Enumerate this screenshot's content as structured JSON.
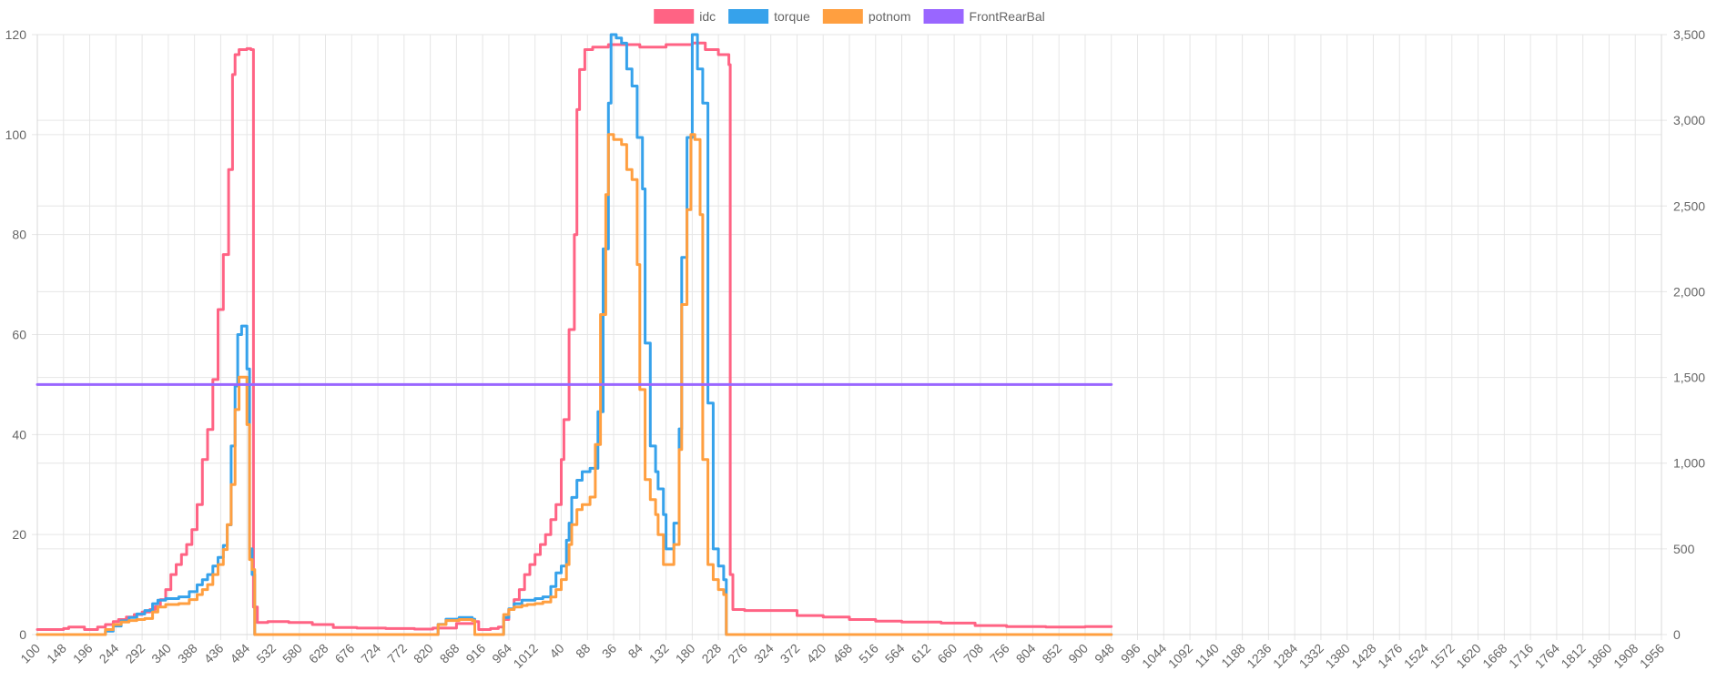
{
  "chart_data": {
    "type": "line",
    "title": "",
    "xlabel": "",
    "ylabel": "",
    "legend_position": "top",
    "grid": true,
    "x_tick_labels": [
      "100",
      "148",
      "196",
      "244",
      "292",
      "340",
      "388",
      "436",
      "484",
      "532",
      "580",
      "628",
      "676",
      "724",
      "772",
      "820",
      "868",
      "916",
      "964",
      "1012",
      "40",
      "88",
      "36",
      "84",
      "132",
      "180",
      "228",
      "276",
      "324",
      "372",
      "420",
      "468",
      "516",
      "564",
      "612",
      "660",
      "708",
      "756",
      "804",
      "852",
      "900",
      "948",
      "996",
      "1044",
      "1092",
      "1140",
      "1188",
      "1236",
      "1284",
      "1332",
      "1380",
      "1428",
      "1476",
      "1524",
      "1572",
      "1620",
      "1668",
      "1716",
      "1764",
      "1812",
      "1860",
      "1908",
      "1956"
    ],
    "y_left": {
      "min": 0,
      "max": 120,
      "ticks": [
        "0",
        "20",
        "40",
        "60",
        "80",
        "100",
        "120"
      ]
    },
    "y_right": {
      "min": 0,
      "max": 3500,
      "ticks": [
        "0",
        "500",
        "1,000",
        "1,500",
        "2,000",
        "2,500",
        "3,000",
        "3,500"
      ]
    },
    "series": [
      {
        "name": "idc",
        "axis": "left",
        "color": "#ff6384",
        "points": [
          [
            0,
            1
          ],
          [
            1,
            1.2
          ],
          [
            1.2,
            1.5
          ],
          [
            1.8,
            1
          ],
          [
            2.3,
            1.5
          ],
          [
            2.6,
            2
          ],
          [
            2.9,
            2.6
          ],
          [
            3.1,
            3
          ],
          [
            3.4,
            3.5
          ],
          [
            3.7,
            4
          ],
          [
            4,
            4.5
          ],
          [
            4.3,
            5
          ],
          [
            4.5,
            5.6
          ],
          [
            4.7,
            7
          ],
          [
            4.9,
            9
          ],
          [
            5.1,
            12
          ],
          [
            5.3,
            14
          ],
          [
            5.5,
            16
          ],
          [
            5.7,
            18
          ],
          [
            5.9,
            21
          ],
          [
            6.1,
            26
          ],
          [
            6.3,
            35
          ],
          [
            6.5,
            41
          ],
          [
            6.7,
            51
          ],
          [
            6.9,
            65
          ],
          [
            7.1,
            76
          ],
          [
            7.3,
            93
          ],
          [
            7.45,
            112
          ],
          [
            7.55,
            116
          ],
          [
            7.7,
            117
          ],
          [
            8,
            117.2
          ],
          [
            8.15,
            117
          ],
          [
            8.25,
            5.5
          ],
          [
            8.4,
            2.4
          ],
          [
            8.8,
            2.6
          ],
          [
            9.6,
            2.4
          ],
          [
            10.5,
            2
          ],
          [
            11.3,
            1.4
          ],
          [
            12.2,
            1.3
          ],
          [
            13.3,
            1.2
          ],
          [
            14.4,
            1.1
          ],
          [
            15.1,
            1.3
          ],
          [
            16,
            2.2
          ],
          [
            16.7,
            2.6
          ],
          [
            16.85,
            1
          ],
          [
            17.3,
            1.2
          ],
          [
            17.6,
            1.5
          ],
          [
            17.8,
            3
          ],
          [
            18,
            5
          ],
          [
            18.2,
            7
          ],
          [
            18.4,
            9
          ],
          [
            18.6,
            12
          ],
          [
            18.8,
            14
          ],
          [
            19,
            16
          ],
          [
            19.2,
            18
          ],
          [
            19.4,
            20
          ],
          [
            19.6,
            23
          ],
          [
            19.8,
            26
          ],
          [
            20,
            35
          ],
          [
            20.1,
            43
          ],
          [
            20.3,
            61
          ],
          [
            20.5,
            80
          ],
          [
            20.6,
            105
          ],
          [
            20.7,
            113
          ],
          [
            20.9,
            117
          ],
          [
            21.2,
            117.5
          ],
          [
            21.8,
            118
          ],
          [
            22.3,
            118
          ],
          [
            23,
            117.5
          ],
          [
            24,
            118
          ],
          [
            25,
            118.3
          ],
          [
            25.5,
            117
          ],
          [
            26,
            116
          ],
          [
            26.4,
            114
          ],
          [
            26.45,
            12
          ],
          [
            26.55,
            5
          ],
          [
            27,
            4.8
          ],
          [
            28.2,
            4.8
          ],
          [
            29,
            3.8
          ],
          [
            30,
            3.5
          ],
          [
            31,
            3
          ],
          [
            32,
            2.7
          ],
          [
            33,
            2.5
          ],
          [
            34.5,
            2.3
          ],
          [
            35.8,
            1.8
          ],
          [
            37,
            1.6
          ],
          [
            38.5,
            1.5
          ],
          [
            40,
            1.6
          ],
          [
            41,
            1.6
          ]
        ]
      },
      {
        "name": "torque",
        "axis": "right",
        "color": "#36a2eb",
        "points": [
          [
            0,
            0
          ],
          [
            2.4,
            0
          ],
          [
            2.6,
            20
          ],
          [
            2.9,
            50
          ],
          [
            3.2,
            80
          ],
          [
            3.5,
            100
          ],
          [
            3.8,
            120
          ],
          [
            4.1,
            140
          ],
          [
            4.4,
            180
          ],
          [
            4.6,
            200
          ],
          [
            4.9,
            210
          ],
          [
            5.4,
            220
          ],
          [
            5.8,
            250
          ],
          [
            6.1,
            290
          ],
          [
            6.3,
            320
          ],
          [
            6.5,
            350
          ],
          [
            6.7,
            400
          ],
          [
            6.9,
            450
          ],
          [
            7.1,
            520
          ],
          [
            7.25,
            640
          ],
          [
            7.4,
            1100
          ],
          [
            7.55,
            1450
          ],
          [
            7.65,
            1750
          ],
          [
            7.8,
            1800
          ],
          [
            8,
            1550
          ],
          [
            8.1,
            500
          ],
          [
            8.2,
            350
          ],
          [
            8.3,
            0
          ],
          [
            15.1,
            0
          ],
          [
            15.3,
            60
          ],
          [
            15.6,
            90
          ],
          [
            16.1,
            100
          ],
          [
            16.6,
            90
          ],
          [
            16.7,
            0
          ],
          [
            17.6,
            0
          ],
          [
            17.8,
            100
          ],
          [
            18,
            150
          ],
          [
            18.2,
            180
          ],
          [
            18.5,
            200
          ],
          [
            18.7,
            200
          ],
          [
            19,
            210
          ],
          [
            19.3,
            220
          ],
          [
            19.6,
            280
          ],
          [
            19.8,
            360
          ],
          [
            20,
            400
          ],
          [
            20.2,
            550
          ],
          [
            20.3,
            650
          ],
          [
            20.4,
            800
          ],
          [
            20.6,
            900
          ],
          [
            20.8,
            950
          ],
          [
            21.1,
            970
          ],
          [
            21.4,
            1300
          ],
          [
            21.6,
            2250
          ],
          [
            21.8,
            3100
          ],
          [
            21.9,
            3500
          ],
          [
            22.1,
            3480
          ],
          [
            22.3,
            3450
          ],
          [
            22.5,
            3300
          ],
          [
            22.7,
            3200
          ],
          [
            22.9,
            2900
          ],
          [
            23.1,
            2600
          ],
          [
            23.2,
            1700
          ],
          [
            23.4,
            1100
          ],
          [
            23.6,
            950
          ],
          [
            23.7,
            850
          ],
          [
            23.9,
            700
          ],
          [
            24,
            500
          ],
          [
            24.3,
            650
          ],
          [
            24.5,
            1200
          ],
          [
            24.6,
            2200
          ],
          [
            24.8,
            2900
          ],
          [
            25,
            3500
          ],
          [
            25.2,
            3300
          ],
          [
            25.4,
            3100
          ],
          [
            25.6,
            1350
          ],
          [
            25.8,
            500
          ],
          [
            26,
            400
          ],
          [
            26.2,
            320
          ],
          [
            26.3,
            0
          ],
          [
            41,
            0
          ]
        ]
      },
      {
        "name": "potnom",
        "axis": "left",
        "color": "#ff9f40",
        "points": [
          [
            0,
            0
          ],
          [
            2.4,
            0
          ],
          [
            2.6,
            1
          ],
          [
            2.9,
            2
          ],
          [
            3.2,
            2.5
          ],
          [
            3.5,
            2.8
          ],
          [
            3.8,
            3
          ],
          [
            4.1,
            3.2
          ],
          [
            4.4,
            4.5
          ],
          [
            4.6,
            5.5
          ],
          [
            4.9,
            6
          ],
          [
            5.4,
            6.2
          ],
          [
            5.8,
            7
          ],
          [
            6.1,
            8
          ],
          [
            6.3,
            9
          ],
          [
            6.5,
            10
          ],
          [
            6.7,
            12
          ],
          [
            6.9,
            14
          ],
          [
            7.1,
            17
          ],
          [
            7.25,
            22
          ],
          [
            7.4,
            30
          ],
          [
            7.55,
            45
          ],
          [
            7.7,
            51.5
          ],
          [
            7.9,
            51.5
          ],
          [
            8,
            42
          ],
          [
            8.1,
            15
          ],
          [
            8.2,
            13
          ],
          [
            8.3,
            0
          ],
          [
            15.1,
            0
          ],
          [
            15.3,
            2
          ],
          [
            15.6,
            2.8
          ],
          [
            16.1,
            3
          ],
          [
            16.6,
            2.8
          ],
          [
            16.7,
            0
          ],
          [
            17.6,
            0
          ],
          [
            17.8,
            4
          ],
          [
            18,
            5
          ],
          [
            18.2,
            5.5
          ],
          [
            18.5,
            5.8
          ],
          [
            18.7,
            6
          ],
          [
            19,
            6.2
          ],
          [
            19.3,
            6.5
          ],
          [
            19.6,
            7.5
          ],
          [
            19.8,
            9
          ],
          [
            20,
            11
          ],
          [
            20.2,
            14
          ],
          [
            20.3,
            18
          ],
          [
            20.4,
            22
          ],
          [
            20.6,
            25
          ],
          [
            20.8,
            26
          ],
          [
            21.1,
            27.5
          ],
          [
            21.3,
            38
          ],
          [
            21.5,
            64
          ],
          [
            21.7,
            88
          ],
          [
            21.8,
            100
          ],
          [
            22,
            99
          ],
          [
            22.3,
            98
          ],
          [
            22.5,
            93
          ],
          [
            22.7,
            91
          ],
          [
            22.9,
            74
          ],
          [
            23,
            49
          ],
          [
            23.2,
            31
          ],
          [
            23.4,
            27
          ],
          [
            23.6,
            24
          ],
          [
            23.7,
            20
          ],
          [
            23.9,
            14
          ],
          [
            24.1,
            14
          ],
          [
            24.3,
            18
          ],
          [
            24.5,
            37
          ],
          [
            24.6,
            66
          ],
          [
            24.8,
            85
          ],
          [
            24.95,
            100
          ],
          [
            25.1,
            99
          ],
          [
            25.3,
            84
          ],
          [
            25.4,
            35
          ],
          [
            25.6,
            14
          ],
          [
            25.8,
            11
          ],
          [
            26,
            9
          ],
          [
            26.2,
            8
          ],
          [
            26.3,
            0
          ],
          [
            41,
            0
          ]
        ]
      },
      {
        "name": "FrontRearBal",
        "axis": "left",
        "color": "#9966ff",
        "points": [
          [
            0,
            50
          ],
          [
            41,
            50
          ]
        ]
      }
    ]
  }
}
